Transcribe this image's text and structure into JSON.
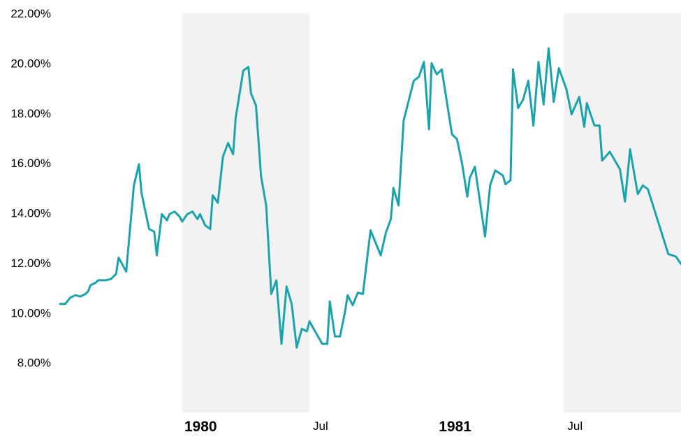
{
  "chart_data": {
    "type": "line",
    "title": "",
    "xlabel": "",
    "ylabel": "",
    "ylim": [
      6,
      22
    ],
    "yticks": [
      {
        "value": 8,
        "label": "8.00%"
      },
      {
        "value": 10,
        "label": "10.00%"
      },
      {
        "value": 12,
        "label": "12.00%"
      },
      {
        "value": 14,
        "label": "14.00%"
      },
      {
        "value": 16,
        "label": "16.00%"
      },
      {
        "value": 18,
        "label": "18.00%"
      },
      {
        "value": 20,
        "label": "20.00%"
      },
      {
        "value": 22,
        "label": "22.00%"
      }
    ],
    "xlim": [
      1979.52,
      1981.96
    ],
    "xticks": [
      {
        "value": 1980.0,
        "label": "1980",
        "bold": true
      },
      {
        "value": 1980.5,
        "label": "Jul",
        "bold": false
      },
      {
        "value": 1981.0,
        "label": "1981",
        "bold": true
      },
      {
        "value": 1981.5,
        "label": "Jul",
        "bold": false
      }
    ],
    "shaded_periods": [
      {
        "start": 1980.0,
        "end": 1980.5
      },
      {
        "start": 1981.5,
        "end": 1981.96
      }
    ],
    "grid": false,
    "legend": "none",
    "colors": {
      "line": "#1BA3AC",
      "shade": "#F2F2F2"
    },
    "series": [
      {
        "values": [
          [
            1979.52,
            10.35
          ],
          [
            1979.54,
            10.35
          ],
          [
            1979.56,
            10.6
          ],
          [
            1979.58,
            10.7
          ],
          [
            1979.6,
            10.65
          ],
          [
            1979.62,
            10.75
          ],
          [
            1979.63,
            10.85
          ],
          [
            1979.64,
            11.1
          ],
          [
            1979.66,
            11.2
          ],
          [
            1979.67,
            11.3
          ],
          [
            1979.7,
            11.3
          ],
          [
            1979.72,
            11.35
          ],
          [
            1979.74,
            11.55
          ],
          [
            1979.75,
            12.2
          ],
          [
            1979.78,
            11.65
          ],
          [
            1979.79,
            12.8
          ],
          [
            1979.81,
            15.1
          ],
          [
            1979.83,
            15.95
          ],
          [
            1979.84,
            14.8
          ],
          [
            1979.87,
            13.35
          ],
          [
            1979.89,
            13.25
          ],
          [
            1979.9,
            12.3
          ],
          [
            1979.92,
            13.95
          ],
          [
            1979.94,
            13.7
          ],
          [
            1979.95,
            13.95
          ],
          [
            1979.97,
            14.05
          ],
          [
            1979.99,
            13.85
          ],
          [
            1980.0,
            13.65
          ],
          [
            1980.02,
            13.95
          ],
          [
            1980.04,
            14.05
          ],
          [
            1980.06,
            13.75
          ],
          [
            1980.07,
            13.95
          ],
          [
            1980.09,
            13.5
          ],
          [
            1980.11,
            13.35
          ],
          [
            1980.12,
            14.7
          ],
          [
            1980.14,
            14.4
          ],
          [
            1980.16,
            16.25
          ],
          [
            1980.18,
            16.8
          ],
          [
            1980.2,
            16.35
          ],
          [
            1980.21,
            17.8
          ],
          [
            1980.24,
            19.7
          ],
          [
            1980.26,
            19.85
          ],
          [
            1980.27,
            18.8
          ],
          [
            1980.29,
            18.3
          ],
          [
            1980.31,
            15.45
          ],
          [
            1980.33,
            14.3
          ],
          [
            1980.35,
            10.75
          ],
          [
            1980.37,
            11.3
          ],
          [
            1980.39,
            8.75
          ],
          [
            1980.41,
            11.05
          ],
          [
            1980.43,
            10.35
          ],
          [
            1980.45,
            8.6
          ],
          [
            1980.47,
            9.35
          ],
          [
            1980.49,
            9.25
          ],
          [
            1980.5,
            9.65
          ],
          [
            1980.55,
            8.75
          ],
          [
            1980.57,
            8.75
          ],
          [
            1980.58,
            10.45
          ],
          [
            1980.6,
            9.05
          ],
          [
            1980.62,
            9.05
          ],
          [
            1980.64,
            10.05
          ],
          [
            1980.65,
            10.7
          ],
          [
            1980.67,
            10.3
          ],
          [
            1980.69,
            10.8
          ],
          [
            1980.71,
            10.75
          ],
          [
            1980.74,
            13.3
          ],
          [
            1980.78,
            12.3
          ],
          [
            1980.8,
            13.2
          ],
          [
            1980.82,
            13.75
          ],
          [
            1980.83,
            15.0
          ],
          [
            1980.85,
            14.3
          ],
          [
            1980.87,
            17.7
          ],
          [
            1980.91,
            19.3
          ],
          [
            1980.93,
            19.45
          ],
          [
            1980.95,
            20.05
          ],
          [
            1980.97,
            17.35
          ],
          [
            1980.98,
            20.0
          ],
          [
            1981.0,
            19.55
          ],
          [
            1981.02,
            19.75
          ],
          [
            1981.06,
            17.15
          ],
          [
            1981.08,
            16.95
          ],
          [
            1981.1,
            15.95
          ],
          [
            1981.12,
            14.65
          ],
          [
            1981.13,
            15.4
          ],
          [
            1981.15,
            15.85
          ],
          [
            1981.19,
            13.05
          ],
          [
            1981.21,
            15.1
          ],
          [
            1981.23,
            15.7
          ],
          [
            1981.26,
            15.5
          ],
          [
            1981.27,
            15.15
          ],
          [
            1981.29,
            15.3
          ],
          [
            1981.3,
            19.75
          ],
          [
            1981.32,
            18.2
          ],
          [
            1981.34,
            18.55
          ],
          [
            1981.36,
            19.3
          ],
          [
            1981.38,
            17.5
          ],
          [
            1981.4,
            20.05
          ],
          [
            1981.42,
            18.35
          ],
          [
            1981.44,
            20.6
          ],
          [
            1981.46,
            18.45
          ],
          [
            1981.48,
            19.8
          ],
          [
            1981.51,
            18.95
          ],
          [
            1981.53,
            17.95
          ],
          [
            1981.56,
            18.65
          ],
          [
            1981.58,
            17.45
          ],
          [
            1981.59,
            18.4
          ],
          [
            1981.62,
            17.5
          ],
          [
            1981.64,
            17.5
          ],
          [
            1981.65,
            16.1
          ],
          [
            1981.68,
            16.45
          ],
          [
            1981.72,
            15.75
          ],
          [
            1981.74,
            14.45
          ],
          [
            1981.76,
            16.55
          ],
          [
            1981.79,
            14.75
          ],
          [
            1981.81,
            15.1
          ],
          [
            1981.83,
            14.95
          ],
          [
            1981.91,
            12.35
          ],
          [
            1981.94,
            12.25
          ],
          [
            1981.96,
            11.95
          ]
        ]
      }
    ]
  }
}
